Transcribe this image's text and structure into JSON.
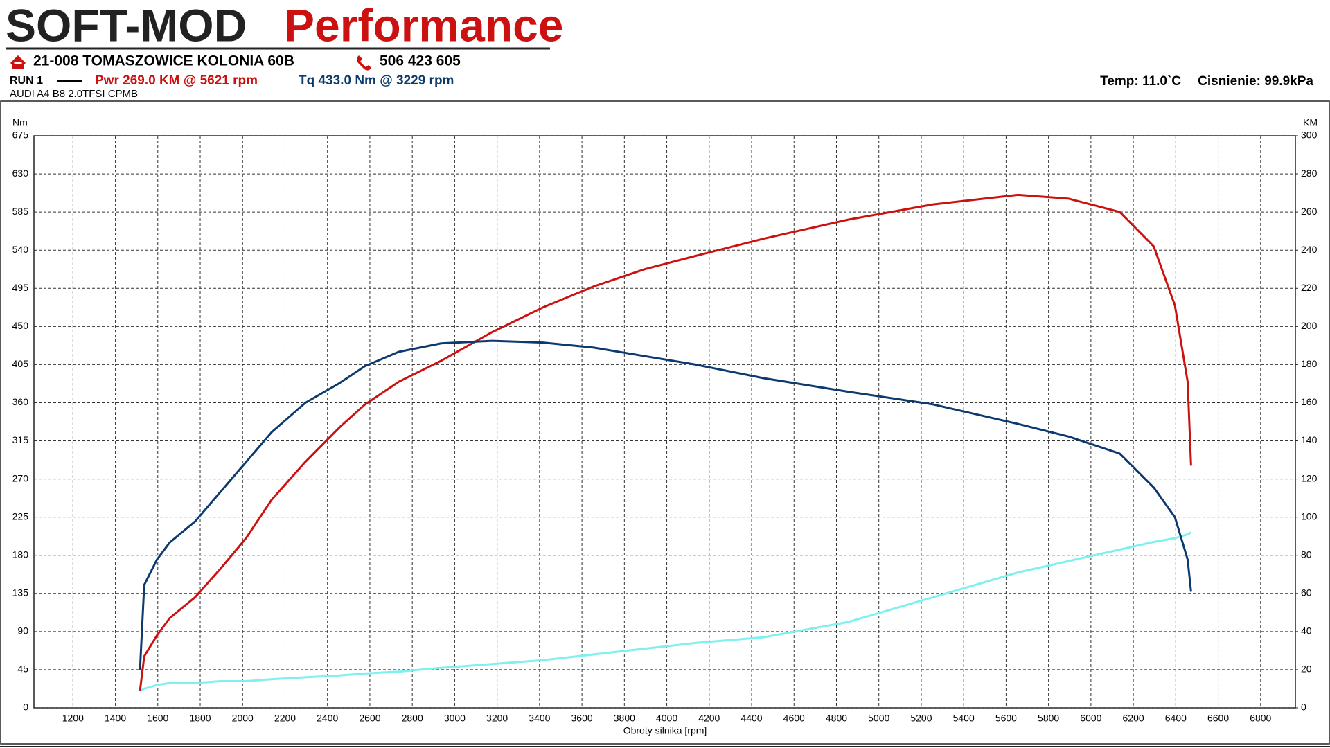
{
  "header": {
    "logo": "SOFT-MOD",
    "logo_sub": "Performance",
    "address": "21-008 TOMASZOWICE KOLONIA 60B",
    "phone": "506 423 605",
    "run": "RUN 1",
    "power_peak": "Pwr  269.0 KM @ 5621 rpm",
    "torque_peak": "Tq 433.0 Nm @ 3229 rpm",
    "temp": "Temp: 11.0`C",
    "pressure": "Cisnienie: 99.9kPa",
    "car": "AUDI A4 B8 2.0TFSI CPMB"
  },
  "chart_data": {
    "type": "line",
    "xlabel": "Obroty silnika [rpm]",
    "ylabel": "Nm",
    "y2label": "KM",
    "x": [
      1516,
      1536,
      1596,
      1656,
      1776,
      1896,
      2016,
      2136,
      2296,
      2456,
      2576,
      2736,
      2936,
      3176,
      3416,
      3656,
      3896,
      4136,
      4456,
      4856,
      5256,
      5656,
      5896,
      6136,
      6296,
      6396,
      6456,
      6472
    ],
    "series": [
      {
        "color": "#0d3a6e",
        "values": [
          45,
          145,
          175,
          195,
          220,
          255,
          290,
          325,
          360,
          383,
          403,
          420,
          430,
          433,
          431,
          425,
          415,
          405,
          389,
          373,
          358,
          335,
          320,
          300,
          260,
          225,
          175,
          137
        ]
      },
      {
        "color": "#cc1111",
        "axis": "y2",
        "values": [
          9,
          27,
          38,
          47,
          58,
          73,
          89,
          109,
          129,
          147,
          159,
          171,
          182,
          197,
          210,
          221,
          230,
          237,
          246,
          256,
          264,
          269,
          267,
          260,
          242,
          211,
          171,
          127
        ]
      },
      {
        "color": "#7ff0f0",
        "axis": "y2",
        "values": [
          9,
          10,
          12,
          13,
          13,
          14,
          14,
          15,
          16,
          17,
          18,
          19,
          21,
          23,
          25,
          28,
          31,
          34,
          37,
          45,
          58,
          71,
          77,
          83,
          87,
          89,
          91,
          92
        ]
      }
    ],
    "xlim": [
      1016,
      6964
    ],
    "xticks": [
      1200,
      1400,
      1600,
      1800,
      2000,
      2200,
      2400,
      2600,
      2800,
      3000,
      3200,
      3400,
      3600,
      3800,
      4000,
      4200,
      4400,
      4600,
      4800,
      5000,
      5200,
      5400,
      5600,
      5800,
      6000,
      6200,
      6400,
      6600,
      6800
    ],
    "ylim": [
      0,
      675
    ],
    "yticks": [
      0,
      45,
      90,
      135,
      180,
      225,
      270,
      315,
      360,
      405,
      450,
      495,
      540,
      585,
      630,
      675
    ],
    "y2lim": [
      0,
      300
    ],
    "y2ticks": [
      0,
      20,
      40,
      60,
      80,
      100,
      120,
      140,
      160,
      180,
      200,
      220,
      240,
      260,
      280,
      300
    ],
    "grid": true
  }
}
